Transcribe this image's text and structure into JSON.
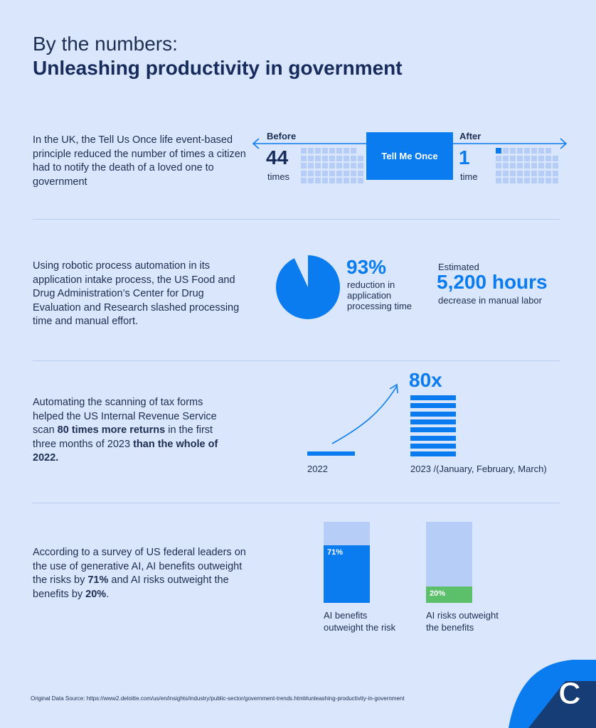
{
  "title": {
    "line1": "By the numbers:",
    "line2": "Unleashing productivity in government"
  },
  "s1": {
    "text": "In the UK, the Tell Us Once life event-based principle reduced the number of times a citizen had to notify the death of a loved one to government",
    "before_label": "Before",
    "before_value": "44",
    "before_unit": "times",
    "center": "Tell Me Once",
    "after_label": "After",
    "after_value": "1",
    "after_unit": "time"
  },
  "s2": {
    "text": "Using robotic process automation in its application intake process, the US Food and Drug Administration’s Center for Drug Evaluation and Research slashed processing time and manual effort.",
    "pct": "93%",
    "pct_value": 93,
    "pct_desc": "reduction in application processing time",
    "est": "Estimated",
    "hours": "5,200 hours",
    "hours_desc": "decrease in manual labor"
  },
  "s3": {
    "text_parts": [
      "Automating the scanning of tax forms helped the US Internal Revenue Service scan ",
      "80 times more returns",
      " in the first three months of 2023 ",
      "than the whole of 2022."
    ],
    "multiplier": "80x",
    "label_2022": "2022",
    "label_2023": "2023 /(January, February, March)"
  },
  "s4": {
    "text_parts": [
      "According to a survey of US federal leaders on the use of generative AI, AI benefits outweight the risks by ",
      "71%",
      " and AI risks outweight the benefits by ",
      "20%",
      "."
    ],
    "bars": [
      {
        "label": "AI benefits outweight the risk",
        "value": 71,
        "value_label": "71%",
        "color": "#0a7cf0"
      },
      {
        "label": "AI risks outweight the benefits",
        "value": 20,
        "value_label": "20%",
        "color": "#5cbf6a"
      }
    ]
  },
  "footer": {
    "source": "Original Data Source: https://www2.deloitte.com/us/en/insights/industry/public-sector/government-trends.html#unleashing-productivity-in-government",
    "logo": "C"
  },
  "colors": {
    "accent": "#0a7cf0",
    "navy": "#172b5c",
    "background": "#d9e6fb"
  }
}
